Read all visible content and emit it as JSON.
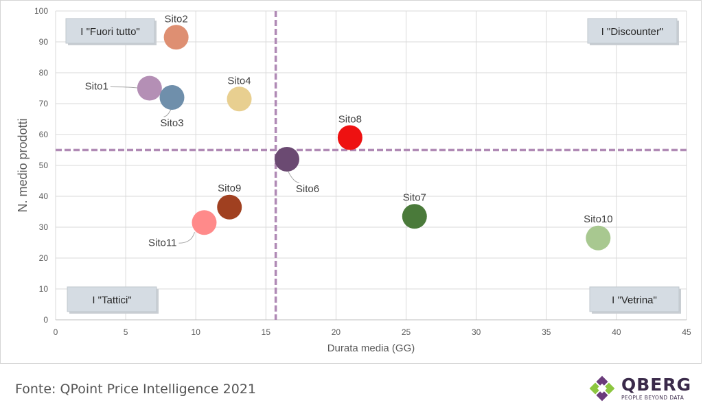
{
  "chart_data": {
    "type": "scatter",
    "xlabel": "Durata media (GG)",
    "ylabel": "N. medio prodotti",
    "xlim": [
      0,
      45
    ],
    "ylim": [
      0,
      100
    ],
    "xticks": [
      0,
      5,
      10,
      15,
      20,
      25,
      30,
      35,
      40,
      45
    ],
    "yticks": [
      0,
      10,
      20,
      30,
      40,
      50,
      60,
      70,
      80,
      90,
      100
    ],
    "grid": true,
    "points": [
      {
        "label": "Sito1",
        "x": 6.7,
        "y": 75,
        "color": "#b48fb5"
      },
      {
        "label": "Sito2",
        "x": 8.6,
        "y": 91.5,
        "color": "#de8f72"
      },
      {
        "label": "Sito3",
        "x": 8.3,
        "y": 72,
        "color": "#6f8fab"
      },
      {
        "label": "Sito4",
        "x": 13.1,
        "y": 71.5,
        "color": "#e8cf90"
      },
      {
        "label": "Sito8",
        "x": 21.0,
        "y": 59,
        "color": "#ee1111"
      },
      {
        "label": "Sito6",
        "x": 16.5,
        "y": 52,
        "color": "#6b4a72"
      },
      {
        "label": "Sito7",
        "x": 25.6,
        "y": 33.5,
        "color": "#4a7a3a"
      },
      {
        "label": "Sito9",
        "x": 12.4,
        "y": 36.5,
        "color": "#a04020"
      },
      {
        "label": "Sito11",
        "x": 10.6,
        "y": 31.5,
        "color": "#ff8a8a"
      },
      {
        "label": "Sito10",
        "x": 38.7,
        "y": 26.5,
        "color": "#a8c890"
      }
    ],
    "reference_lines": {
      "x": 15.7,
      "y": 55,
      "color": "#b08ab5"
    },
    "quadrant_labels": [
      {
        "text": "I \"Fuori tutto\"",
        "position": "top-left"
      },
      {
        "text": "I \"Discounter\"",
        "position": "top-right"
      },
      {
        "text": "I \"Tattici\"",
        "position": "bottom-left"
      },
      {
        "text": "I \"Vetrina\"",
        "position": "bottom-right"
      }
    ]
  },
  "footer": {
    "source": "Fonte: QPoint Price Intelligence 2021"
  },
  "logo": {
    "name": "QBERG",
    "tagline": "PEOPLE BEYOND DATA"
  }
}
